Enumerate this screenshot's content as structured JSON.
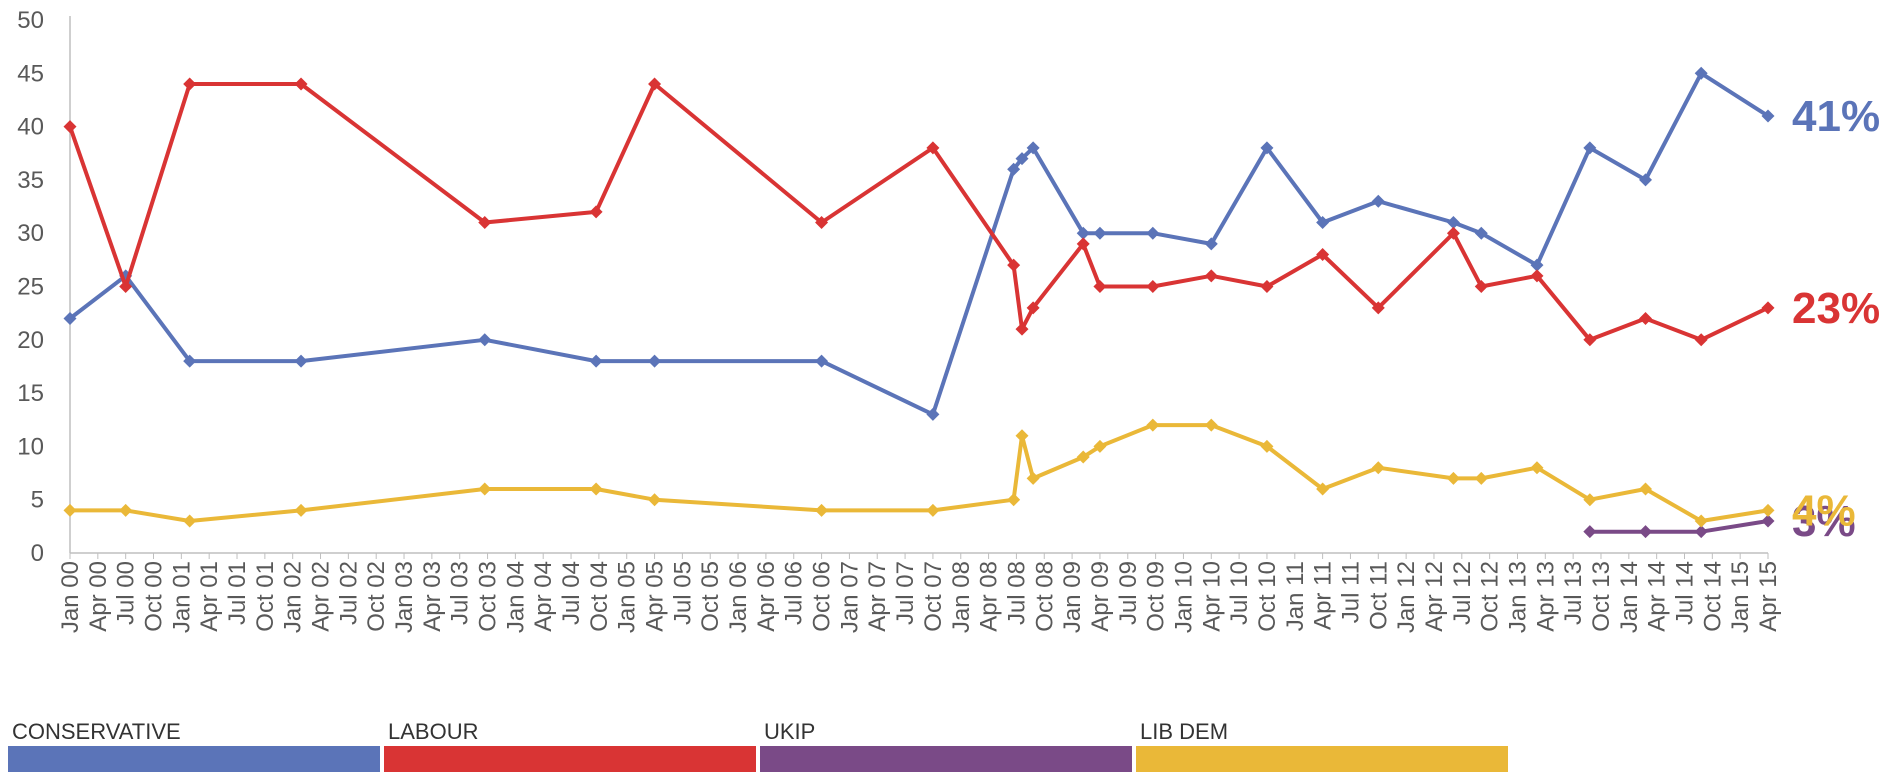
{
  "chart_data": {
    "type": "line",
    "title": "",
    "xlabel": "",
    "ylabel": "",
    "ylim": [
      0,
      50
    ],
    "yticks": [
      0,
      5,
      10,
      15,
      20,
      25,
      30,
      35,
      40,
      45,
      50
    ],
    "xtick_labels": [
      "Jan 00",
      "Apr 00",
      "Jul 00",
      "Oct 00",
      "Jan 01",
      "Apr 01",
      "Jul 01",
      "Oct 01",
      "Jan 02",
      "Apr 02",
      "Jul 02",
      "Oct 02",
      "Jan 03",
      "Apr 03",
      "Jul 03",
      "Oct 03",
      "Jan 04",
      "Apr 04",
      "Jul 04",
      "Oct 04",
      "Jan 05",
      "Apr 05",
      "Jul 05",
      "Oct 05",
      "Jan 06",
      "Apr 06",
      "Jul 06",
      "Oct 06",
      "Jan 07",
      "Apr 07",
      "Jul 07",
      "Oct 07",
      "Jan 08",
      "Apr 08",
      "Jul 08",
      "Oct 08",
      "Jan 09",
      "Apr 09",
      "Jul 09",
      "Oct 09",
      "Jan 10",
      "Apr 10",
      "Jul 10",
      "Oct 10",
      "Jan 11",
      "Apr 11",
      "Jul 11",
      "Oct 11",
      "Jan 12",
      "Apr 12",
      "Jul 12",
      "Oct 12",
      "Jan 13",
      "Apr 13",
      "Jul 13",
      "Oct 13",
      "Jan 14",
      "Apr 14",
      "Jul 14",
      "Oct 14",
      "Jan 15",
      "Apr 15"
    ],
    "grid": false,
    "legend_position": "bottom",
    "series": [
      {
        "name": "CONSERVATIVE",
        "color": "#5b74b8",
        "end_label": "41%",
        "points": [
          [
            0,
            22
          ],
          [
            2,
            26
          ],
          [
            4.3,
            18
          ],
          [
            8.3,
            18
          ],
          [
            14.9,
            20
          ],
          [
            18.9,
            18
          ],
          [
            21,
            18
          ],
          [
            27,
            18
          ],
          [
            31,
            13
          ],
          [
            33.9,
            36
          ],
          [
            34.2,
            37
          ],
          [
            34.6,
            38
          ],
          [
            36.4,
            30
          ],
          [
            37,
            30
          ],
          [
            38.9,
            30
          ],
          [
            41,
            29
          ],
          [
            43,
            38
          ],
          [
            45,
            31
          ],
          [
            47,
            33
          ],
          [
            49.7,
            31
          ],
          [
            50.7,
            30
          ],
          [
            52.7,
            27
          ],
          [
            54.6,
            38
          ],
          [
            56.6,
            35
          ],
          [
            58.6,
            45
          ],
          [
            61,
            41
          ]
        ]
      },
      {
        "name": "LABOUR",
        "color": "#d93434",
        "end_label": "23%",
        "points": [
          [
            0,
            40
          ],
          [
            2,
            25
          ],
          [
            4.3,
            44
          ],
          [
            8.3,
            44
          ],
          [
            14.9,
            31
          ],
          [
            18.9,
            32
          ],
          [
            21,
            44
          ],
          [
            27,
            31
          ],
          [
            31,
            38
          ],
          [
            33.9,
            27
          ],
          [
            34.2,
            21
          ],
          [
            34.6,
            23
          ],
          [
            36.4,
            29
          ],
          [
            37,
            25
          ],
          [
            38.9,
            25
          ],
          [
            41,
            26
          ],
          [
            43,
            25
          ],
          [
            45,
            28
          ],
          [
            47,
            23
          ],
          [
            49.7,
            30
          ],
          [
            50.7,
            25
          ],
          [
            52.7,
            26
          ],
          [
            54.6,
            20
          ],
          [
            56.6,
            22
          ],
          [
            58.6,
            20
          ],
          [
            61,
            23
          ]
        ]
      },
      {
        "name": "UKIP",
        "color": "#7a4a87",
        "end_label": "3%",
        "points": [
          [
            54.6,
            2
          ],
          [
            56.6,
            2
          ],
          [
            58.6,
            2
          ],
          [
            61,
            3
          ]
        ]
      },
      {
        "name": "LIB DEM",
        "color": "#eab838",
        "end_label": "4%",
        "points": [
          [
            0,
            4
          ],
          [
            2,
            4
          ],
          [
            4.3,
            3
          ],
          [
            8.3,
            4
          ],
          [
            14.9,
            6
          ],
          [
            18.9,
            6
          ],
          [
            21,
            5
          ],
          [
            27,
            4
          ],
          [
            31,
            4
          ],
          [
            33.9,
            5
          ],
          [
            34.2,
            11
          ],
          [
            34.6,
            7
          ],
          [
            36.4,
            9
          ],
          [
            37,
            10
          ],
          [
            38.9,
            12
          ],
          [
            41,
            12
          ],
          [
            43,
            10
          ],
          [
            45,
            6
          ],
          [
            47,
            8
          ],
          [
            49.7,
            7
          ],
          [
            50.7,
            7
          ],
          [
            52.7,
            8
          ],
          [
            54.6,
            5
          ],
          [
            56.6,
            6
          ],
          [
            58.6,
            3
          ],
          [
            61,
            4
          ]
        ]
      }
    ]
  }
}
